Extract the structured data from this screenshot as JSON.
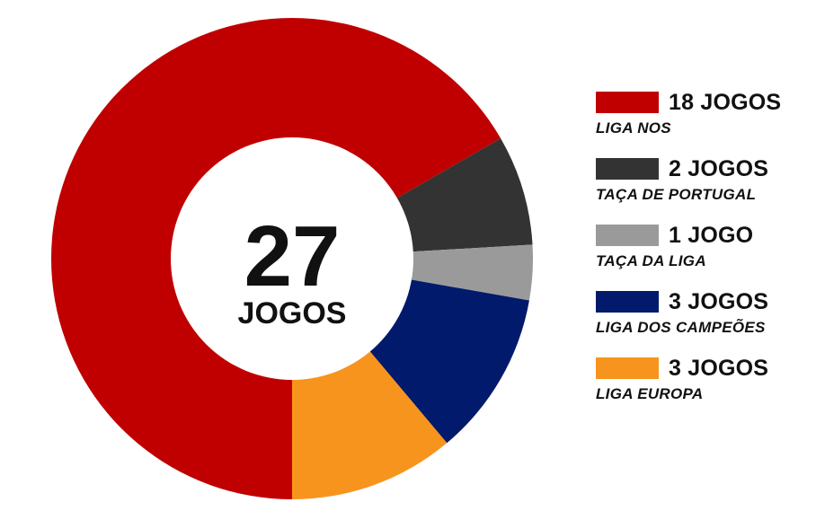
{
  "chart_data": {
    "type": "pie",
    "center": {
      "value": "27",
      "label": "JOGOS"
    },
    "slices": [
      {
        "name": "LIGA NOS",
        "value": 18,
        "count_label": "18 JOGOS",
        "color": "#c00000"
      },
      {
        "name": "TAÇA DE PORTUGAL",
        "value": 2,
        "count_label": "2 JOGOS",
        "color": "#333333"
      },
      {
        "name": "TAÇA DA LIGA",
        "value": 1,
        "count_label": "1 JOGO",
        "color": "#9a9a9a"
      },
      {
        "name": "LIGA DOS CAMPEÕES",
        "value": 3,
        "count_label": "3 JOGOS",
        "color": "#021a6b"
      },
      {
        "name": "LIGA EUROPA",
        "value": 3,
        "count_label": "3 JOGOS",
        "color": "#f7941d"
      }
    ],
    "legend_position": "right"
  }
}
